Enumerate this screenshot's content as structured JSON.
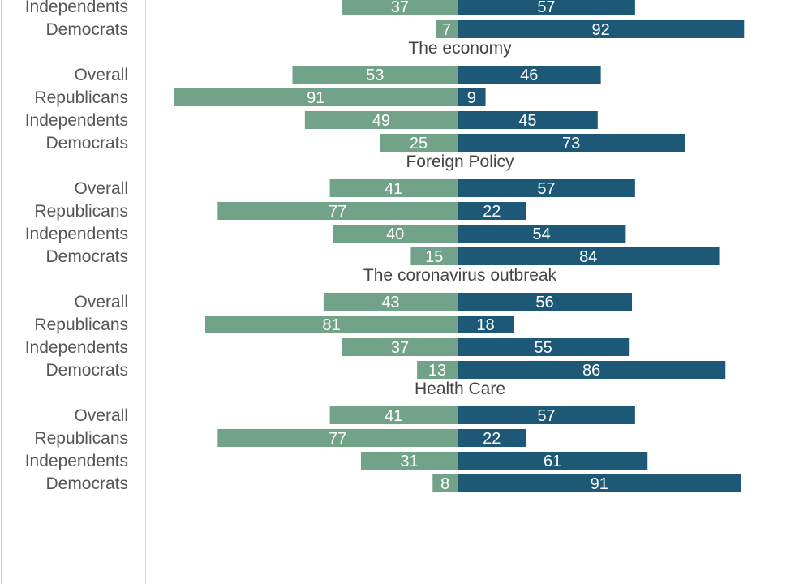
{
  "colors": {
    "approve": "#72a288",
    "disapprove": "#1d5877",
    "axis_line": "#dddddd",
    "frame_line": "#cccccc"
  },
  "chart_data": {
    "type": "bar",
    "orientation": "horizontal-diverging",
    "series": [
      {
        "color": "#72a288"
      },
      {
        "color": "#1d5877"
      }
    ],
    "groups": [
      {
        "title": "",
        "rows": [
          {
            "label": "Independents",
            "left": 37,
            "right": 57
          },
          {
            "label": "Democrats",
            "left": 7,
            "right": 92
          }
        ]
      },
      {
        "title": "The economy",
        "rows": [
          {
            "label": "Overall",
            "left": 53,
            "right": 46
          },
          {
            "label": "Republicans",
            "left": 91,
            "right": 9
          },
          {
            "label": "Independents",
            "left": 49,
            "right": 45
          },
          {
            "label": "Democrats",
            "left": 25,
            "right": 73
          }
        ]
      },
      {
        "title": "Foreign Policy",
        "rows": [
          {
            "label": "Overall",
            "left": 41,
            "right": 57
          },
          {
            "label": "Republicans",
            "left": 77,
            "right": 22
          },
          {
            "label": "Independents",
            "left": 40,
            "right": 54
          },
          {
            "label": "Democrats",
            "left": 15,
            "right": 84
          }
        ]
      },
      {
        "title": "The coronavirus outbreak",
        "rows": [
          {
            "label": "Overall",
            "left": 43,
            "right": 56
          },
          {
            "label": "Republicans",
            "left": 81,
            "right": 18
          },
          {
            "label": "Independents",
            "left": 37,
            "right": 55
          },
          {
            "label": "Democrats",
            "left": 13,
            "right": 86
          }
        ]
      },
      {
        "title": "Health Care",
        "rows": [
          {
            "label": "Overall",
            "left": 41,
            "right": 57
          },
          {
            "label": "Republicans",
            "left": 77,
            "right": 22
          },
          {
            "label": "Independents",
            "left": 31,
            "right": 61
          },
          {
            "label": "Democrats",
            "left": 8,
            "right": 91
          }
        ]
      }
    ],
    "xlim": [
      -100,
      100
    ],
    "grid": false
  }
}
